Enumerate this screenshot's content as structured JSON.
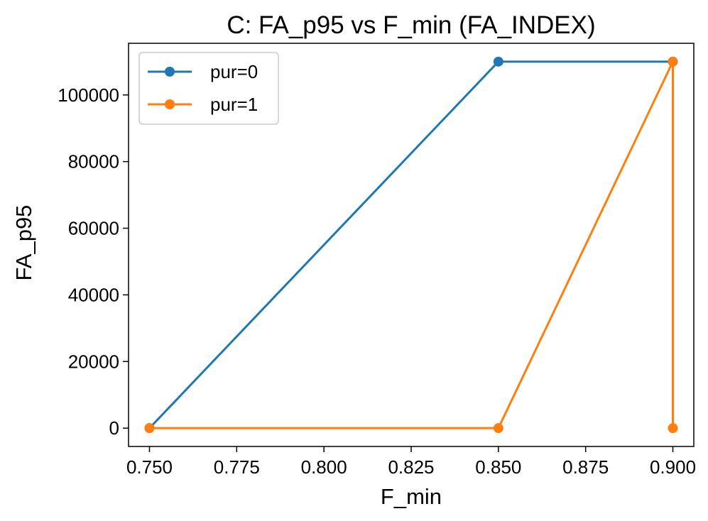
{
  "chart_data": {
    "type": "line",
    "title": "C: FA_p95 vs F_min (FA_INDEX)",
    "xlabel": "F_min",
    "ylabel": "FA_p95",
    "xlim": [
      0.744,
      0.906
    ],
    "ylim": [
      -5500,
      115500
    ],
    "xticks": [
      0.75,
      0.775,
      0.8,
      0.825,
      0.85,
      0.875,
      0.9
    ],
    "xtick_labels": [
      "0.750",
      "0.775",
      "0.800",
      "0.825",
      "0.850",
      "0.875",
      "0.900"
    ],
    "yticks": [
      0,
      20000,
      40000,
      60000,
      80000,
      100000
    ],
    "ytick_labels": [
      "0",
      "20000",
      "40000",
      "60000",
      "80000",
      "100000"
    ],
    "grid": false,
    "legend_position": "top-left",
    "series": [
      {
        "name": "pur=0",
        "color": "#1f77b4",
        "x": [
          0.75,
          0.85,
          0.9
        ],
        "y": [
          0,
          110000,
          110000
        ]
      },
      {
        "name": "pur=1",
        "color": "#ff7f0e",
        "x": [
          0.75,
          0.85,
          0.9,
          0.9
        ],
        "y": [
          0,
          0,
          110000,
          0
        ]
      }
    ]
  }
}
